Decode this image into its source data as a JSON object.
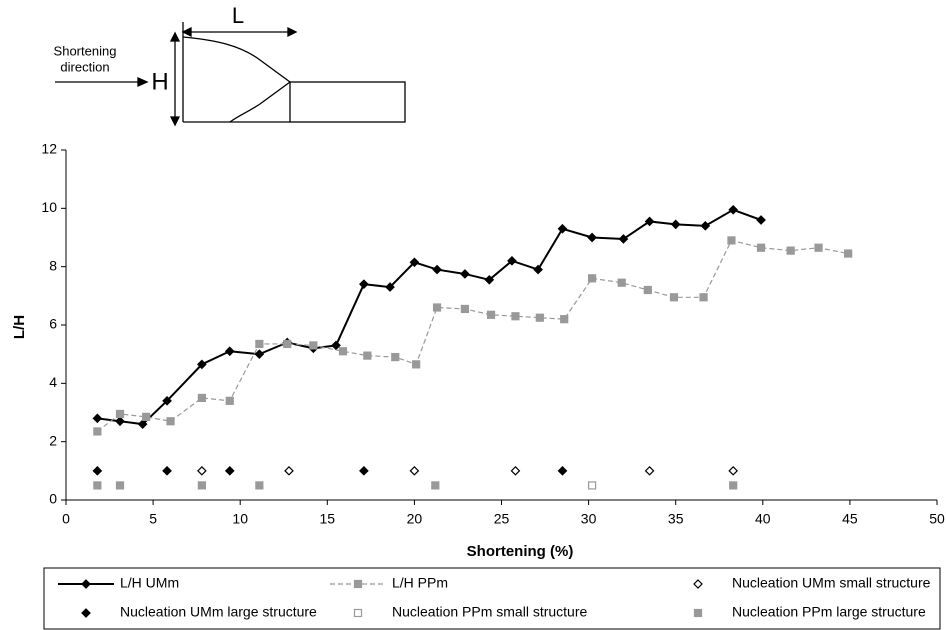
{
  "diagram": {
    "length_label": "L",
    "height_label": "H",
    "arrow_label": [
      "Shortening",
      "direction"
    ]
  },
  "chart_data": {
    "type": "line",
    "x_label": "Shortening (%)",
    "y_label": "L/H",
    "xlim": [
      0,
      50
    ],
    "xticks": [
      0,
      5,
      10,
      15,
      20,
      25,
      30,
      35,
      40,
      45,
      50
    ],
    "ylim": [
      0,
      12
    ],
    "yticks": [
      0,
      2,
      4,
      6,
      8,
      10,
      12
    ],
    "series": [
      {
        "name": "L/H UMm",
        "color": "#000000",
        "mode": "line",
        "dash": false,
        "marker": "diamond",
        "filled": true,
        "x": [
          1.8,
          3.1,
          4.4,
          5.8,
          7.8,
          9.4,
          11.1,
          12.7,
          14.2,
          15.5,
          17.1,
          18.6,
          20,
          21.3,
          22.9,
          24.3,
          25.6,
          27.1,
          28.5,
          30.2,
          32,
          33.5,
          35,
          36.7,
          38.3,
          39.9
        ],
        "values": [
          2.8,
          2.7,
          2.6,
          3.4,
          4.65,
          5.1,
          5.0,
          5.4,
          5.2,
          5.3,
          7.4,
          7.3,
          8.15,
          7.9,
          7.75,
          7.55,
          8.2,
          7.9,
          9.3,
          9.0,
          8.95,
          9.55,
          9.45,
          9.4,
          9.95,
          9.6
        ]
      },
      {
        "name": "L/H PPm",
        "color": "#999999",
        "mode": "line",
        "dash": true,
        "marker": "square",
        "filled": true,
        "x": [
          1.8,
          3.1,
          4.6,
          6.0,
          7.8,
          9.4,
          11.1,
          12.7,
          14.2,
          15.9,
          17.3,
          18.9,
          20.1,
          21.3,
          22.9,
          24.4,
          25.8,
          27.2,
          28.6,
          30.2,
          31.9,
          33.4,
          34.9,
          36.6,
          38.2,
          39.9,
          41.6,
          43.2,
          44.9
        ],
        "values": [
          2.35,
          2.95,
          2.85,
          2.7,
          3.5,
          3.4,
          5.35,
          5.35,
          5.3,
          5.1,
          4.95,
          4.9,
          4.65,
          6.6,
          6.55,
          6.35,
          6.3,
          6.25,
          6.2,
          7.6,
          7.45,
          7.2,
          6.95,
          6.95,
          8.9,
          8.65,
          8.55,
          8.65,
          8.45
        ]
      },
      {
        "name": "Nucleation UMm small structure",
        "color": "#000000",
        "mode": "markers",
        "marker": "diamond",
        "filled": false,
        "x": [
          7.8,
          12.8,
          20.0,
          25.8,
          33.5,
          38.3
        ],
        "values": [
          1,
          1,
          1,
          1,
          1,
          1
        ]
      },
      {
        "name": "Nucleation UMm large structure",
        "color": "#000000",
        "mode": "markers",
        "marker": "diamond",
        "filled": true,
        "x": [
          1.8,
          5.8,
          9.4,
          17.1,
          28.5
        ],
        "values": [
          1,
          1,
          1,
          1,
          1
        ]
      },
      {
        "name": "Nucleation PPm small structure",
        "color": "#999999",
        "mode": "markers",
        "marker": "square",
        "filled": false,
        "x": [
          30.2
        ],
        "values": [
          0.5
        ]
      },
      {
        "name": "Nucleation PPm large structure",
        "color": "#999999",
        "mode": "markers",
        "marker": "square",
        "filled": true,
        "x": [
          1.8,
          3.1,
          7.8,
          11.1,
          21.2,
          38.3
        ],
        "values": [
          0.5,
          0.5,
          0.5,
          0.5,
          0.5,
          0.5
        ]
      }
    ]
  }
}
